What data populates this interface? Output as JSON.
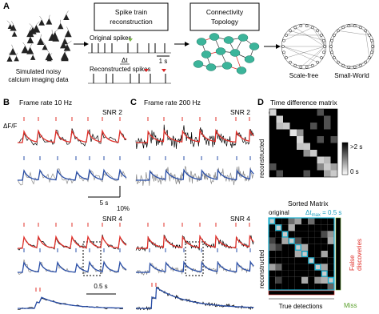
{
  "panel_a": {
    "label": "A",
    "sim_caption": [
      "Simulated noisy",
      "calcium imaging data"
    ],
    "box1": [
      "Spike train",
      "reconstruction"
    ],
    "original_spikes": "Original spikes",
    "reconstructed_spikes": "Reconstructed spikes",
    "delta_t": "Δt",
    "scale": "1 s",
    "box2": [
      "Connectivity",
      "Topology"
    ],
    "scale_free": "Scale-free",
    "small_world": "Small-World"
  },
  "panel_b": {
    "label": "B",
    "title": "Frame rate 10 Hz",
    "snr_top": "SNR 2",
    "ylabel": "ΔF/F",
    "time_scale": "5 s",
    "amp_scale": "10%",
    "snr_bottom": "SNR 4",
    "zoom_scale": "0.5 s"
  },
  "panel_c": {
    "label": "C",
    "title": "Frame rate 200 Hz",
    "snr_top": "SNR 2",
    "snr_bottom": "SNR 4"
  },
  "panel_d": {
    "label": "D",
    "title": "Time difference matrix",
    "original": "original",
    "reconstructed": "reconstructed",
    "cbar_max": ">2 s",
    "cbar_min": "0 s",
    "sorted_title": "Sorted Matrix",
    "sorted_original": "original",
    "dt_max": {
      "symbol": "Δt",
      "subscript": "max",
      "value": " = 0.5 s"
    },
    "sorted_reconstructed": "reconstructed",
    "false_discoveries": [
      "False",
      "discoveries"
    ],
    "true_detections": "True detections",
    "miss": "Miss"
  }
}
